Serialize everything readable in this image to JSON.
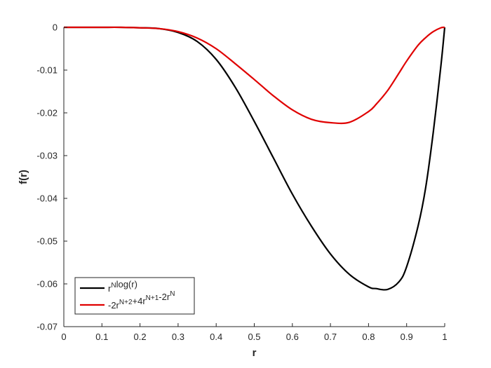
{
  "chart_data": {
    "type": "line",
    "title": "",
    "xlabel": "r",
    "ylabel": "f(r)",
    "xlim": [
      0,
      1
    ],
    "ylim": [
      -0.07,
      0
    ],
    "grid": false,
    "legend_position": "bottom-left",
    "xticks": [
      0,
      0.1,
      0.2,
      0.3,
      0.4,
      0.5,
      0.6,
      0.7,
      0.8,
      0.9,
      1
    ],
    "xtick_labels": [
      "0",
      "0.1",
      "0.2",
      "0.3",
      "0.4",
      "0.5",
      "0.6",
      "0.7",
      "0.8",
      "0.9",
      "1"
    ],
    "yticks": [
      0,
      -0.01,
      -0.02,
      -0.03,
      -0.04,
      -0.05,
      -0.06,
      -0.07
    ],
    "ytick_labels": [
      "0",
      "-0.01",
      "-0.02",
      "-0.03",
      "-0.04",
      "-0.05",
      "-0.06",
      "-0.07"
    ],
    "x": [
      0,
      0.05,
      0.1,
      0.15,
      0.2,
      0.25,
      0.3,
      0.35,
      0.4,
      0.45,
      0.5,
      0.55,
      0.6,
      0.65,
      0.7,
      0.75,
      0.8,
      0.82,
      0.85,
      0.88,
      0.9,
      0.93,
      0.95,
      0.97,
      0.99,
      1
    ],
    "series": [
      {
        "legend": {
          "base": "r",
          "sup": "N",
          "rest": "log(r)"
        },
        "color": "#000000",
        "values": [
          0,
          0,
          0,
          0,
          -0.0001,
          -0.0003,
          -0.0012,
          -0.0033,
          -0.0075,
          -0.014,
          -0.022,
          -0.0305,
          -0.039,
          -0.0465,
          -0.053,
          -0.0578,
          -0.0607,
          -0.0611,
          -0.0613,
          -0.0595,
          -0.056,
          -0.0465,
          -0.0375,
          -0.0245,
          -0.009,
          0
        ]
      },
      {
        "legend": {
          "parts": [
            [
              "-2r",
              "N+2"
            ],
            [
              "+4r",
              "N+1"
            ],
            [
              "-2r",
              "N"
            ]
          ]
        },
        "color": "#e00000",
        "values": [
          0,
          0,
          0,
          0,
          -0.0001,
          -0.0003,
          -0.001,
          -0.0025,
          -0.005,
          -0.0085,
          -0.0122,
          -0.016,
          -0.0193,
          -0.0215,
          -0.0223,
          -0.0222,
          -0.0197,
          -0.018,
          -0.0148,
          -0.0107,
          -0.0079,
          -0.0042,
          -0.0024,
          -0.001,
          -0.0001,
          0
        ]
      }
    ]
  }
}
